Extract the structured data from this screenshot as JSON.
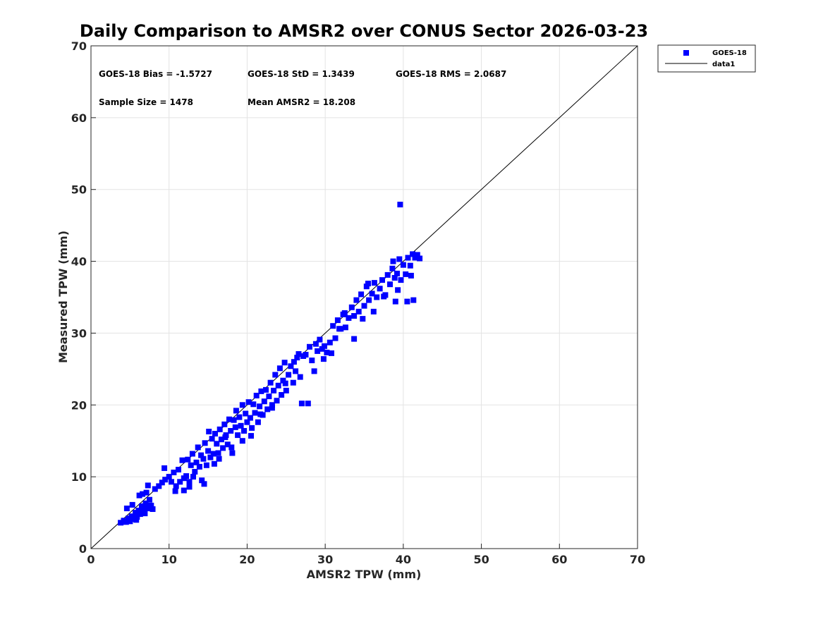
{
  "chart_data": {
    "type": "scatter",
    "title": "Daily Comparison to AMSR2 over CONUS Sector 2026-03-23",
    "xlabel": "AMSR2 TPW (mm)",
    "ylabel": "Measured TPW (mm)",
    "xlim": [
      0,
      70
    ],
    "ylim": [
      0,
      70
    ],
    "xticks": [
      0,
      10,
      20,
      30,
      40,
      50,
      60,
      70
    ],
    "yticks": [
      0,
      10,
      20,
      30,
      40,
      50,
      60,
      70
    ],
    "xtick_labels": [
      "0",
      "10",
      "20",
      "30",
      "40",
      "50",
      "60",
      "70"
    ],
    "ytick_labels": [
      "0",
      "10",
      "20",
      "30",
      "40",
      "50",
      "60",
      "70"
    ],
    "grid": true,
    "legend_position": "outside top-right",
    "stats": [
      "GOES-18 Bias = -1.5727",
      "GOES-18 StD = 1.3439",
      "GOES-18 RMS = 2.0687",
      "Sample Size = 1478",
      "Mean AMSR2 = 18.208"
    ],
    "series": [
      {
        "name": "GOES-18",
        "kind": "scatter",
        "marker": "square",
        "color": "#0000ff",
        "points": [
          [
            3.8,
            3.6
          ],
          [
            4.2,
            3.9
          ],
          [
            4.5,
            3.7
          ],
          [
            4.8,
            4.2
          ],
          [
            5.0,
            3.8
          ],
          [
            5.2,
            4.5
          ],
          [
            5.5,
            4.1
          ],
          [
            5.7,
            5.0
          ],
          [
            5.9,
            4.4
          ],
          [
            6.1,
            5.3
          ],
          [
            6.3,
            4.8
          ],
          [
            6.5,
            5.9
          ],
          [
            6.8,
            5.2
          ],
          [
            7.0,
            6.3
          ],
          [
            7.2,
            5.6
          ],
          [
            7.5,
            6.8
          ],
          [
            7.7,
            6.0
          ],
          [
            4.6,
            5.6
          ],
          [
            5.3,
            6.1
          ],
          [
            6.2,
            7.4
          ],
          [
            6.6,
            7.6
          ],
          [
            7.1,
            7.8
          ],
          [
            7.9,
            5.5
          ],
          [
            7.3,
            8.8
          ],
          [
            6.9,
            4.9
          ],
          [
            5.8,
            4.0
          ],
          [
            8.2,
            8.3
          ],
          [
            8.7,
            8.7
          ],
          [
            9.1,
            9.2
          ],
          [
            9.5,
            9.6
          ],
          [
            9.4,
            11.2
          ],
          [
            10.0,
            10.0
          ],
          [
            10.3,
            9.3
          ],
          [
            10.6,
            10.6
          ],
          [
            10.9,
            8.7
          ],
          [
            11.2,
            11.0
          ],
          [
            11.4,
            9.3
          ],
          [
            11.7,
            12.3
          ],
          [
            11.9,
            8.1
          ],
          [
            12.2,
            10.1
          ],
          [
            12.4,
            12.4
          ],
          [
            12.6,
            9.3
          ],
          [
            12.8,
            11.6
          ],
          [
            13.0,
            13.2
          ],
          [
            13.3,
            10.7
          ],
          [
            13.5,
            12.0
          ],
          [
            13.7,
            14.1
          ],
          [
            13.9,
            11.4
          ],
          [
            14.1,
            13.0
          ],
          [
            14.2,
            9.5
          ],
          [
            14.4,
            12.5
          ],
          [
            14.6,
            14.7
          ],
          [
            14.8,
            11.6
          ],
          [
            15.0,
            13.6
          ],
          [
            15.1,
            16.3
          ],
          [
            15.3,
            12.7
          ],
          [
            15.5,
            15.3
          ],
          [
            15.7,
            13.2
          ],
          [
            15.9,
            16.0
          ],
          [
            16.1,
            14.6
          ],
          [
            16.3,
            13.3
          ],
          [
            16.5,
            16.6
          ],
          [
            16.7,
            15.2
          ],
          [
            16.9,
            14.0
          ],
          [
            17.1,
            17.3
          ],
          [
            17.3,
            15.8
          ],
          [
            17.5,
            14.5
          ],
          [
            17.7,
            18.0
          ],
          [
            17.9,
            16.4
          ],
          [
            18.1,
            13.3
          ],
          [
            18.3,
            17.9
          ],
          [
            18.5,
            16.9
          ],
          [
            18.6,
            19.2
          ],
          [
            18.8,
            15.8
          ],
          [
            19.0,
            18.3
          ],
          [
            19.2,
            17.1
          ],
          [
            19.4,
            20.0
          ],
          [
            19.6,
            16.4
          ],
          [
            19.8,
            18.8
          ],
          [
            20.0,
            17.6
          ],
          [
            20.2,
            20.4
          ],
          [
            20.4,
            18.2
          ],
          [
            20.6,
            16.8
          ],
          [
            20.8,
            20.1
          ],
          [
            21.0,
            18.9
          ],
          [
            21.2,
            21.3
          ],
          [
            21.4,
            17.6
          ],
          [
            21.6,
            19.8
          ],
          [
            21.8,
            21.9
          ],
          [
            22.0,
            18.6
          ],
          [
            22.2,
            20.5
          ],
          [
            22.4,
            22.1
          ],
          [
            22.6,
            19.4
          ],
          [
            22.8,
            21.2
          ],
          [
            23.0,
            23.1
          ],
          [
            23.2,
            20.0
          ],
          [
            23.4,
            22.0
          ],
          [
            23.6,
            24.2
          ],
          [
            23.8,
            20.6
          ],
          [
            24.0,
            22.7
          ],
          [
            24.2,
            25.1
          ],
          [
            24.4,
            21.4
          ],
          [
            24.6,
            23.4
          ],
          [
            24.8,
            25.9
          ],
          [
            25.0,
            22.0
          ],
          [
            25.3,
            24.2
          ],
          [
            25.6,
            25.4
          ],
          [
            25.9,
            23.1
          ],
          [
            26.2,
            24.7
          ],
          [
            26.4,
            26.6
          ],
          [
            26.6,
            27.1
          ],
          [
            26.8,
            23.9
          ],
          [
            27.0,
            20.2
          ],
          [
            27.5,
            27.0
          ],
          [
            27.8,
            20.2
          ],
          [
            28.0,
            28.1
          ],
          [
            28.3,
            26.2
          ],
          [
            28.6,
            24.7
          ],
          [
            28.8,
            28.5
          ],
          [
            29.0,
            27.5
          ],
          [
            29.3,
            29.1
          ],
          [
            29.6,
            27.8
          ],
          [
            29.9,
            28.2
          ],
          [
            30.2,
            27.3
          ],
          [
            30.6,
            28.7
          ],
          [
            31.0,
            31.0
          ],
          [
            31.3,
            29.3
          ],
          [
            31.6,
            31.8
          ],
          [
            32.0,
            30.6
          ],
          [
            32.3,
            32.6
          ],
          [
            32.6,
            30.8
          ],
          [
            33.0,
            32.1
          ],
          [
            33.4,
            33.6
          ],
          [
            33.7,
            32.4
          ],
          [
            34.0,
            34.6
          ],
          [
            34.3,
            33.0
          ],
          [
            34.6,
            35.4
          ],
          [
            35.0,
            33.8
          ],
          [
            35.3,
            36.5
          ],
          [
            35.6,
            34.6
          ],
          [
            36.0,
            35.5
          ],
          [
            36.3,
            37.0
          ],
          [
            36.6,
            35.0
          ],
          [
            37.0,
            36.2
          ],
          [
            37.3,
            37.4
          ],
          [
            37.7,
            35.3
          ],
          [
            38.0,
            38.1
          ],
          [
            38.3,
            36.8
          ],
          [
            38.6,
            39.0
          ],
          [
            38.9,
            37.7
          ],
          [
            39.2,
            38.3
          ],
          [
            39.5,
            40.3
          ],
          [
            39.7,
            37.4
          ],
          [
            40.0,
            39.5
          ],
          [
            40.3,
            38.2
          ],
          [
            40.6,
            40.5
          ],
          [
            40.9,
            39.4
          ],
          [
            41.2,
            41.0
          ],
          [
            41.5,
            40.5
          ],
          [
            41.8,
            40.9
          ],
          [
            42.1,
            40.4
          ],
          [
            40.5,
            34.4
          ],
          [
            41.3,
            34.6
          ],
          [
            39.0,
            34.4
          ],
          [
            37.5,
            35.1
          ],
          [
            38.7,
            40.0
          ],
          [
            39.3,
            36.0
          ],
          [
            41.0,
            38.0
          ],
          [
            34.8,
            32.0
          ],
          [
            36.2,
            33.0
          ],
          [
            33.7,
            29.2
          ],
          [
            31.8,
            30.6
          ],
          [
            35.5,
            36.9
          ],
          [
            27.2,
            26.8
          ],
          [
            26.0,
            26.0
          ],
          [
            30.8,
            27.2
          ],
          [
            32.5,
            32.8
          ],
          [
            39.6,
            47.9
          ],
          [
            29.8,
            26.4
          ],
          [
            17.2,
            15.5
          ],
          [
            13.1,
            10.0
          ],
          [
            11.9,
            9.8
          ],
          [
            10.8,
            8.0
          ],
          [
            12.6,
            8.6
          ],
          [
            15.8,
            11.8
          ],
          [
            14.5,
            9.0
          ],
          [
            19.4,
            15.0
          ],
          [
            21.7,
            18.7
          ],
          [
            23.2,
            19.6
          ],
          [
            24.9,
            23.0
          ],
          [
            20.5,
            15.7
          ],
          [
            16.4,
            12.5
          ],
          [
            18.0,
            14.1
          ]
        ]
      },
      {
        "name": "data1",
        "kind": "line",
        "color": "#000000",
        "points": [
          [
            0,
            0
          ],
          [
            70,
            70
          ]
        ]
      }
    ]
  }
}
